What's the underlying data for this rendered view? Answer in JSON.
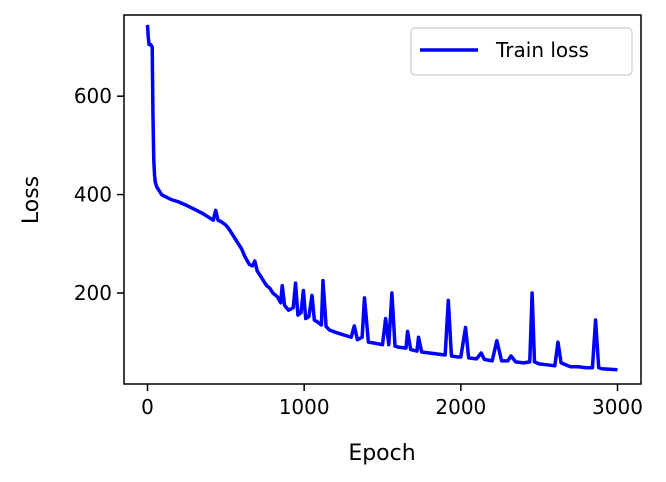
{
  "chart_data": {
    "type": "line",
    "xlabel": "Epoch",
    "ylabel": "Loss",
    "xlim": [
      -150,
      3150
    ],
    "ylim": [
      15,
      765
    ],
    "xticks": [
      0,
      1000,
      2000,
      3000
    ],
    "yticks": [
      200,
      400,
      600
    ],
    "grid": false,
    "legend": {
      "entries": [
        "Train loss"
      ],
      "placement": "upper right"
    },
    "series": [
      {
        "name": "Train loss",
        "color": "#0000ff",
        "points": [
          [
            0,
            745
          ],
          [
            5,
            720
          ],
          [
            10,
            705
          ],
          [
            20,
            705
          ],
          [
            30,
            700
          ],
          [
            35,
            560
          ],
          [
            40,
            470
          ],
          [
            45,
            440
          ],
          [
            50,
            425
          ],
          [
            60,
            415
          ],
          [
            70,
            410
          ],
          [
            80,
            405
          ],
          [
            90,
            400
          ],
          [
            100,
            398
          ],
          [
            120,
            395
          ],
          [
            150,
            390
          ],
          [
            200,
            385
          ],
          [
            250,
            378
          ],
          [
            300,
            370
          ],
          [
            350,
            362
          ],
          [
            400,
            352
          ],
          [
            420,
            348
          ],
          [
            435,
            368
          ],
          [
            450,
            348
          ],
          [
            470,
            345
          ],
          [
            500,
            338
          ],
          [
            520,
            330
          ],
          [
            540,
            320
          ],
          [
            560,
            310
          ],
          [
            580,
            300
          ],
          [
            600,
            290
          ],
          [
            620,
            275
          ],
          [
            650,
            258
          ],
          [
            670,
            255
          ],
          [
            685,
            265
          ],
          [
            700,
            245
          ],
          [
            720,
            235
          ],
          [
            740,
            225
          ],
          [
            760,
            215
          ],
          [
            780,
            210
          ],
          [
            800,
            200
          ],
          [
            830,
            192
          ],
          [
            850,
            180
          ],
          [
            860,
            215
          ],
          [
            875,
            175
          ],
          [
            900,
            165
          ],
          [
            930,
            170
          ],
          [
            945,
            220
          ],
          [
            960,
            155
          ],
          [
            980,
            160
          ],
          [
            995,
            205
          ],
          [
            1010,
            148
          ],
          [
            1030,
            152
          ],
          [
            1050,
            195
          ],
          [
            1065,
            145
          ],
          [
            1090,
            140
          ],
          [
            1110,
            135
          ],
          [
            1120,
            225
          ],
          [
            1140,
            132
          ],
          [
            1160,
            125
          ],
          [
            1200,
            120
          ],
          [
            1250,
            115
          ],
          [
            1300,
            110
          ],
          [
            1320,
            133
          ],
          [
            1340,
            105
          ],
          [
            1370,
            110
          ],
          [
            1385,
            190
          ],
          [
            1410,
            100
          ],
          [
            1450,
            98
          ],
          [
            1500,
            95
          ],
          [
            1520,
            148
          ],
          [
            1540,
            95
          ],
          [
            1560,
            200
          ],
          [
            1580,
            92
          ],
          [
            1600,
            90
          ],
          [
            1650,
            88
          ],
          [
            1660,
            122
          ],
          [
            1680,
            85
          ],
          [
            1720,
            82
          ],
          [
            1730,
            110
          ],
          [
            1750,
            80
          ],
          [
            1800,
            78
          ],
          [
            1850,
            76
          ],
          [
            1900,
            74
          ],
          [
            1920,
            185
          ],
          [
            1940,
            72
          ],
          [
            1980,
            70
          ],
          [
            2000,
            70
          ],
          [
            2030,
            130
          ],
          [
            2050,
            68
          ],
          [
            2100,
            66
          ],
          [
            2130,
            78
          ],
          [
            2150,
            65
          ],
          [
            2200,
            62
          ],
          [
            2230,
            103
          ],
          [
            2260,
            62
          ],
          [
            2300,
            62
          ],
          [
            2320,
            72
          ],
          [
            2350,
            60
          ],
          [
            2400,
            58
          ],
          [
            2440,
            60
          ],
          [
            2455,
            200
          ],
          [
            2470,
            60
          ],
          [
            2500,
            56
          ],
          [
            2550,
            54
          ],
          [
            2600,
            52
          ],
          [
            2620,
            100
          ],
          [
            2640,
            58
          ],
          [
            2700,
            50
          ],
          [
            2750,
            50
          ],
          [
            2800,
            48
          ],
          [
            2840,
            48
          ],
          [
            2860,
            145
          ],
          [
            2880,
            48
          ],
          [
            2900,
            46
          ],
          [
            2950,
            45
          ],
          [
            3000,
            44
          ]
        ]
      }
    ]
  }
}
